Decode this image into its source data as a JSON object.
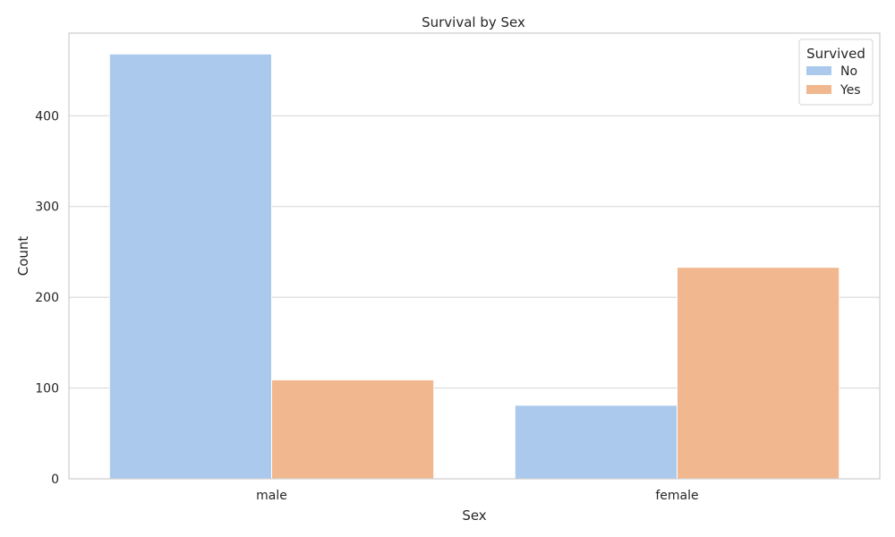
{
  "chart_data": {
    "type": "bar",
    "title": "Survival by Sex",
    "xlabel": "Sex",
    "ylabel": "Count",
    "categories": [
      "male",
      "female"
    ],
    "series": [
      {
        "name": "No",
        "values": [
          468,
          81
        ],
        "color": "#abc9ed"
      },
      {
        "name": "Yes",
        "values": [
          109,
          233
        ],
        "color": "#f1b78f"
      }
    ],
    "yticks": [
      0,
      100,
      200,
      300,
      400
    ],
    "ylim": [
      0,
      491
    ],
    "grid": true,
    "legend": {
      "title": "Survived",
      "placement": "top-right"
    }
  }
}
